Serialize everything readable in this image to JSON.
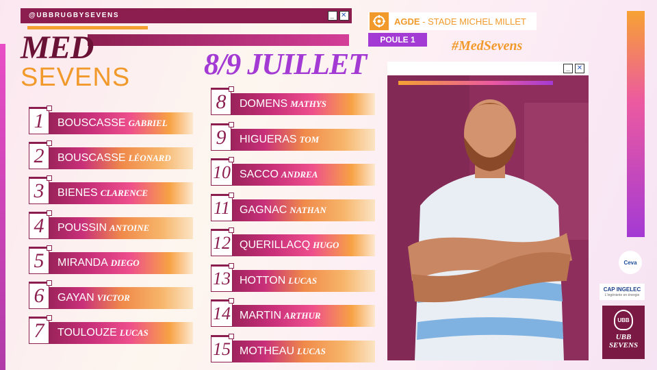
{
  "header": {
    "handle": "@UBBRUGBYSEVENS",
    "title_top": "MED",
    "title_bottom": "SEVENS",
    "date": "8/9 JUILLET",
    "hashtag": "#MedSevens"
  },
  "venue": {
    "city": "AGDE",
    "stadium": " - STADE MICHEL MILLET",
    "pool": "POULE 1"
  },
  "window_buttons": {
    "minimize": "_",
    "close": "✕"
  },
  "players_left": [
    {
      "num": "1",
      "last": "BOUSCASSE",
      "first": "Gabriel"
    },
    {
      "num": "2",
      "last": "BOUSCASSE",
      "first": "Léonard"
    },
    {
      "num": "3",
      "last": "BIENES",
      "first": "Clarence"
    },
    {
      "num": "4",
      "last": "POUSSIN",
      "first": "Antoine"
    },
    {
      "num": "5",
      "last": "MIRANDA",
      "first": "Diego"
    },
    {
      "num": "6",
      "last": "GAYAN",
      "first": "Victor"
    },
    {
      "num": "7",
      "last": "TOULOUZE",
      "first": "Lucas"
    }
  ],
  "players_right": [
    {
      "num": "8",
      "last": "DOMENS",
      "first": "Mathys"
    },
    {
      "num": "9",
      "last": "HIGUERAS",
      "first": "Tom"
    },
    {
      "num": "10",
      "last": "SACCO",
      "first": "Andrea"
    },
    {
      "num": "11",
      "last": "GAGNAC",
      "first": "Nathan"
    },
    {
      "num": "12",
      "last": "QUERILLACQ",
      "first": "Hugo"
    },
    {
      "num": "13",
      "last": "HOTTON",
      "first": "Lucas"
    },
    {
      "num": "14",
      "last": "MARTIN",
      "first": "Arthur"
    },
    {
      "num": "15",
      "last": "MOTHEAU",
      "first": "Lucas"
    }
  ],
  "sponsors": {
    "ceva": "Ceva",
    "cap": "CAP INGELEC",
    "cap_tagline": "L'ingénierie en énergie",
    "ubb": "UBB SEVENS"
  },
  "colors": {
    "maroon": "#8b1e4f",
    "orange": "#f19a2b",
    "purple": "#a43ad4"
  }
}
